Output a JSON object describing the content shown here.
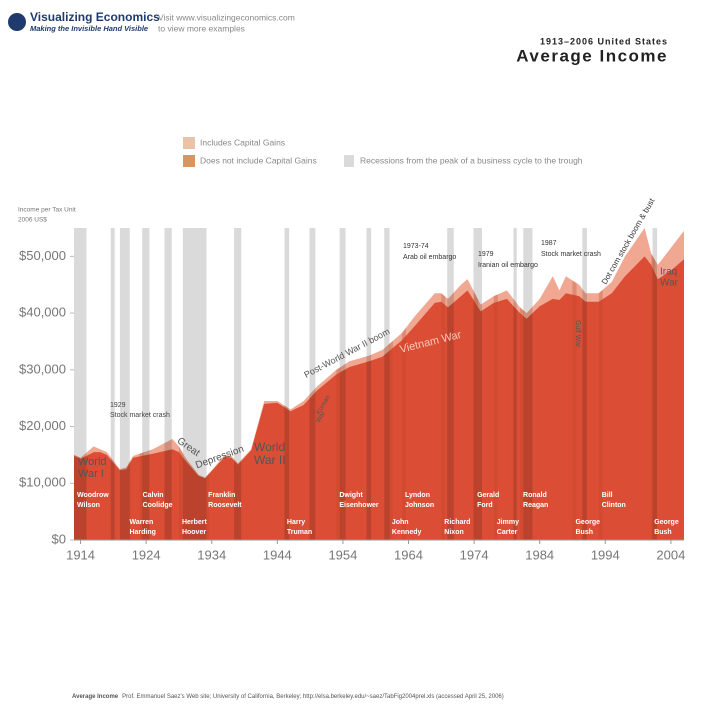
{
  "header": {
    "brand": "Visualizing Economics",
    "tagline": "Making the Invisible Hand Visible",
    "visit": [
      "Visit www.visualizingeconomics.com",
      "to view more examples"
    ]
  },
  "chart_data": {
    "type": "area",
    "subtitle": "1913–2006 United States",
    "title": "Average Income",
    "y_label": [
      "Income per Tax Unit",
      "2006 US$"
    ],
    "x": [
      1913,
      1914,
      1916,
      1917,
      1918,
      1920,
      1921,
      1922,
      1925,
      1928,
      1929,
      1930,
      1932,
      1933,
      1936,
      1937,
      1938,
      1940,
      1942,
      1944,
      1946,
      1948,
      1950,
      1953,
      1955,
      1958,
      1960,
      1963,
      1965,
      1968,
      1969,
      1970,
      1972,
      1973,
      1975,
      1977,
      1979,
      1981,
      1982,
      1984,
      1986,
      1987,
      1988,
      1990,
      1991,
      1993,
      1995,
      1997,
      2000,
      2001,
      2002,
      2004,
      2006
    ],
    "series": [
      {
        "name": "Includes Capital Gains",
        "color": "#f0a892",
        "values": [
          15000,
          14500,
          16500,
          16000,
          15500,
          12500,
          12800,
          14800,
          16000,
          17800,
          16500,
          14500,
          11500,
          11000,
          15000,
          14800,
          13500,
          16000,
          24500,
          24500,
          23000,
          24500,
          27000,
          30000,
          31500,
          32500,
          33500,
          36500,
          39500,
          43500,
          43500,
          42500,
          45000,
          46000,
          41500,
          43000,
          44000,
          41000,
          40000,
          42500,
          46500,
          44000,
          46500,
          45000,
          43500,
          43500,
          45500,
          50000,
          55000,
          50500,
          48500,
          51500,
          54500
        ]
      },
      {
        "name": "Does not include Capital Gains",
        "color": "#e9765c",
        "values": [
          14800,
          14300,
          15500,
          15500,
          15000,
          12300,
          12500,
          14500,
          15200,
          16000,
          15500,
          14000,
          11300,
          10900,
          14700,
          14500,
          13300,
          15800,
          24000,
          24200,
          22700,
          23800,
          26300,
          29200,
          30500,
          31500,
          32300,
          35200,
          37800,
          41800,
          42000,
          41000,
          43000,
          44000,
          40300,
          41800,
          42500,
          40000,
          39000,
          41200,
          42500,
          42300,
          43500,
          43000,
          42000,
          42000,
          43500,
          46500,
          50000,
          48500,
          46000,
          47500,
          49500
        ]
      }
    ],
    "legend_colors": [
      "#e9c2aa",
      "#d9955f"
    ],
    "recession_label": "Recessions from the peak of a business cycle to the trough",
    "recession_color": "#dadada",
    "recessions": [
      [
        1913,
        1914.9
      ],
      [
        1918.6,
        1919.2
      ],
      [
        1920,
        1921.5
      ],
      [
        1923.4,
        1924.5
      ],
      [
        1926.8,
        1927.9
      ],
      [
        1929.6,
        1933.2
      ],
      [
        1937.4,
        1938.5
      ],
      [
        1945.1,
        1945.8
      ],
      [
        1948.9,
        1949.8
      ],
      [
        1953.5,
        1954.4
      ],
      [
        1957.6,
        1958.3
      ],
      [
        1960.3,
        1961.1
      ],
      [
        1969.9,
        1970.9
      ],
      [
        1973.9,
        1975.2
      ],
      [
        1980,
        1980.5
      ],
      [
        1981.5,
        1982.9
      ],
      [
        1990.5,
        1991.2
      ],
      [
        2001.2,
        2001.9
      ]
    ],
    "presidents": [
      {
        "year": 1913,
        "lines": [
          "Woodrow",
          "Wilson"
        ]
      },
      {
        "year": 1921,
        "lines": [
          "Warren",
          "Harding"
        ]
      },
      {
        "year": 1923,
        "lines": [
          "Calvin",
          "Coolidge"
        ]
      },
      {
        "year": 1929,
        "lines": [
          "Herbert",
          "Hoover"
        ]
      },
      {
        "year": 1933,
        "lines": [
          "Franklin",
          "Roosevelt"
        ]
      },
      {
        "year": 1945,
        "lines": [
          "Harry",
          "Truman"
        ]
      },
      {
        "year": 1953,
        "lines": [
          "Dwight",
          "Eisenhower"
        ]
      },
      {
        "year": 1961,
        "lines": [
          "John",
          "Kennedy"
        ]
      },
      {
        "year": 1963,
        "lines": [
          "Lyndon",
          "Johnson"
        ]
      },
      {
        "year": 1969,
        "lines": [
          "Richard",
          "Nixon"
        ]
      },
      {
        "year": 1974,
        "lines": [
          "Gerald",
          "Ford"
        ]
      },
      {
        "year": 1977,
        "lines": [
          "Jimmy",
          "Carter"
        ]
      },
      {
        "year": 1981,
        "lines": [
          "Ronald",
          "Reagan"
        ]
      },
      {
        "year": 1989,
        "lines": [
          "George",
          "Bush"
        ]
      },
      {
        "year": 1993,
        "lines": [
          "Bill",
          "Clinton"
        ]
      },
      {
        "year": 2001,
        "lines": [
          "George",
          "Bush"
        ]
      }
    ],
    "annotations": [
      {
        "lines": [
          "World",
          "War I"
        ]
      },
      {
        "lines": [
          "1929",
          "Stock market crash"
        ]
      },
      {
        "lines": [
          "Great",
          "Depression"
        ]
      },
      {
        "lines": [
          "World",
          "War II"
        ]
      },
      {
        "lines": [
          "Post-World War II boom"
        ]
      },
      {
        "lines": [
          "Korean",
          "War"
        ]
      },
      {
        "lines": [
          "Vietnam War"
        ]
      },
      {
        "lines": [
          "1973-74",
          "Arab oil embargo"
        ]
      },
      {
        "lines": [
          "1979",
          "Iranian oil embargo"
        ]
      },
      {
        "lines": [
          "1987",
          "Stock market crash"
        ]
      },
      {
        "lines": [
          "Dot com stock boom & bust"
        ]
      },
      {
        "lines": [
          "Gulf War"
        ]
      },
      {
        "lines": [
          "Iraq",
          "War"
        ]
      }
    ],
    "xlim": [
      1913,
      2006
    ],
    "ylim": [
      0,
      55000
    ],
    "xticks": [
      1914,
      1924,
      1934,
      1944,
      1954,
      1964,
      1974,
      1984,
      1994,
      2004
    ],
    "yticks": [
      {
        "value": 0,
        "label": "$0"
      },
      {
        "value": 10000,
        "label": "$10,000"
      },
      {
        "value": 20000,
        "label": "$20,000"
      },
      {
        "value": 30000,
        "label": "$30,000"
      },
      {
        "value": 40000,
        "label": "$40,000"
      },
      {
        "value": 50000,
        "label": "$50,000"
      }
    ],
    "source": {
      "label": "Average Income",
      "text": "Prof. Emmanuel Saez's Web site; University of California, Berkeley; http://elsa.berkeley.edu/~saez/TabFig2004prel.xls (accessed April 25, 2006)"
    }
  }
}
